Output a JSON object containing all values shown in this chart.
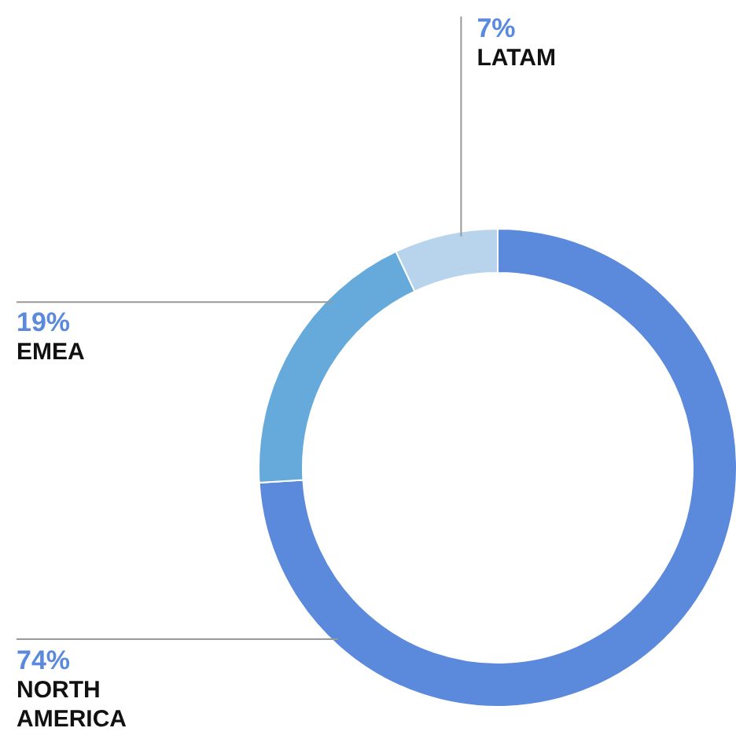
{
  "chart_data": {
    "type": "donut",
    "categories": [
      "NORTH AMERICA",
      "EMEA",
      "LATAM"
    ],
    "values": [
      74,
      19,
      7
    ],
    "colors": [
      "#5b89dc",
      "#66aadb",
      "#b8d4ec"
    ],
    "value_labels": [
      "74%",
      "19%",
      "7%"
    ]
  }
}
